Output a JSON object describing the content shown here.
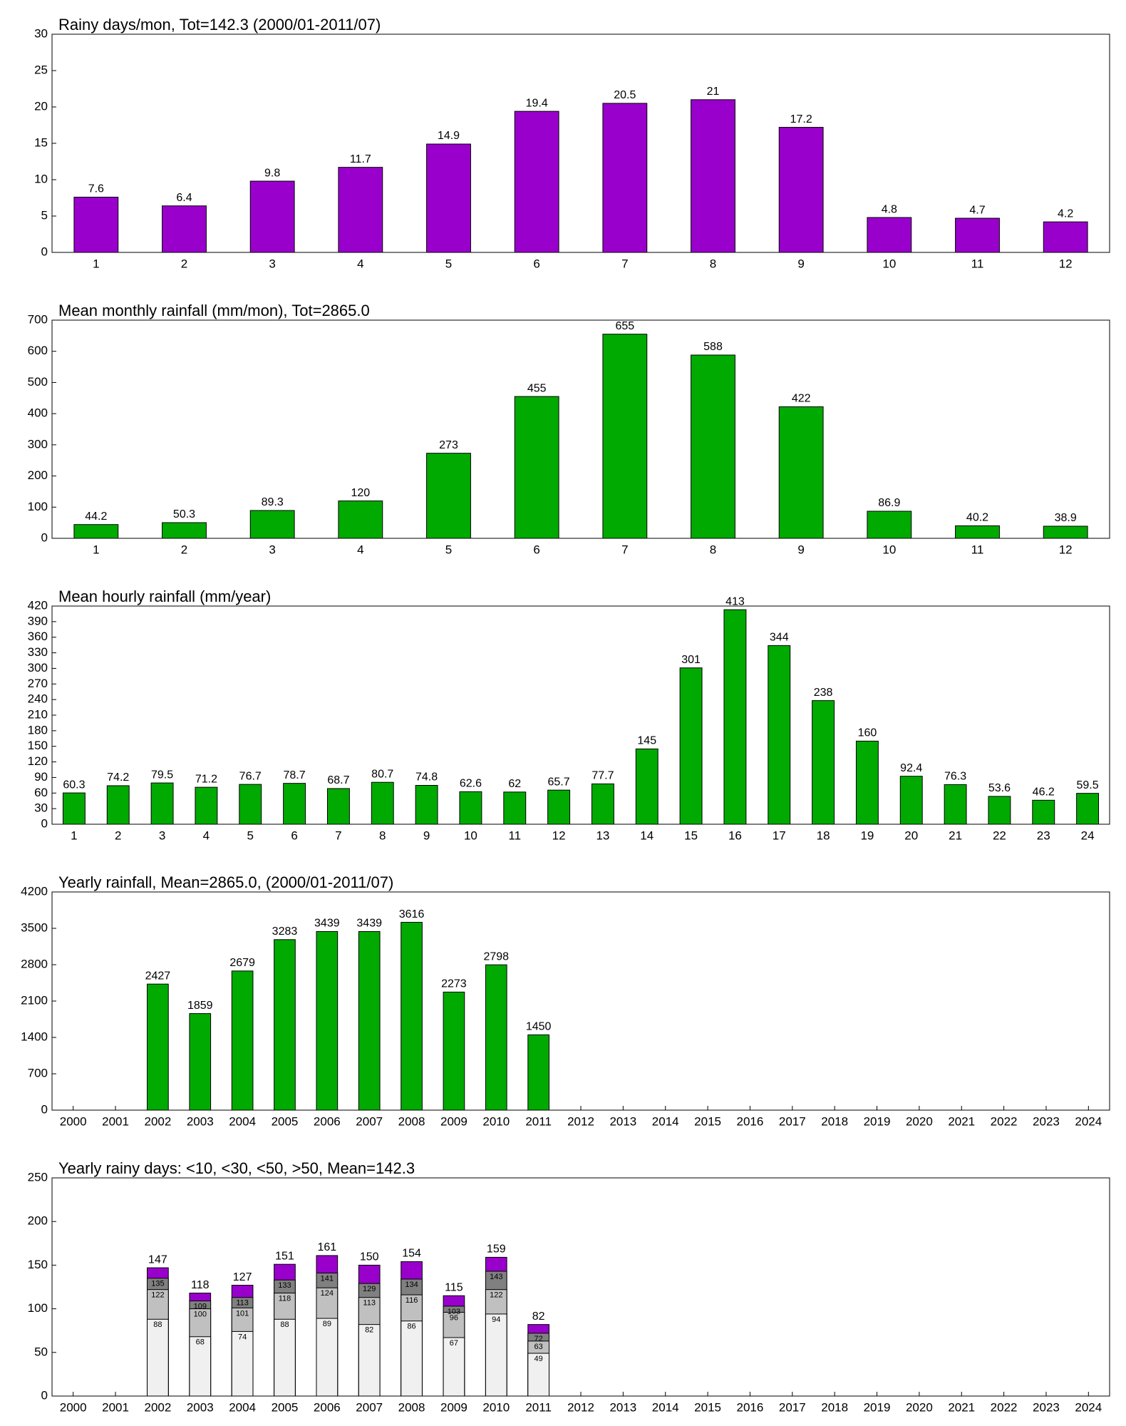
{
  "chart_data": [
    {
      "type": "bar",
      "title": "Rainy days/mon, Tot=142.3 (2000/01-2011/07)",
      "categories": [
        "1",
        "2",
        "3",
        "4",
        "5",
        "6",
        "7",
        "8",
        "9",
        "10",
        "11",
        "12"
      ],
      "values": [
        7.6,
        6.4,
        9.8,
        11.7,
        14.9,
        19.4,
        20.5,
        21,
        17.2,
        4.8,
        4.7,
        4.2
      ],
      "color": "#9900cc",
      "ylim": [
        0,
        30
      ],
      "yticks": [
        0,
        5,
        10,
        15,
        20,
        25,
        30
      ]
    },
    {
      "type": "bar",
      "title": "Mean monthly rainfall (mm/mon), Tot=2865.0",
      "categories": [
        "1",
        "2",
        "3",
        "4",
        "5",
        "6",
        "7",
        "8",
        "9",
        "10",
        "11",
        "12"
      ],
      "values": [
        44.2,
        50.3,
        89.3,
        120,
        273,
        455,
        655,
        588,
        422,
        86.9,
        40.2,
        38.9
      ],
      "color": "#00aa00",
      "ylim": [
        0,
        700
      ],
      "yticks": [
        0,
        100,
        200,
        300,
        400,
        500,
        600,
        700
      ]
    },
    {
      "type": "bar",
      "title": "Mean hourly rainfall (mm/year)",
      "categories": [
        "1",
        "2",
        "3",
        "4",
        "5",
        "6",
        "7",
        "8",
        "9",
        "10",
        "11",
        "12",
        "13",
        "14",
        "15",
        "16",
        "17",
        "18",
        "19",
        "20",
        "21",
        "22",
        "23",
        "24"
      ],
      "values": [
        60.3,
        74.2,
        79.5,
        71.2,
        76.7,
        78.7,
        68.7,
        80.7,
        74.8,
        62.6,
        62,
        65.7,
        77.7,
        145,
        301,
        413,
        344,
        238,
        160,
        92.4,
        76.3,
        53.6,
        46.2,
        59.5
      ],
      "color": "#00aa00",
      "ylim": [
        0,
        420
      ],
      "yticks": [
        0,
        30,
        60,
        90,
        120,
        150,
        180,
        210,
        240,
        270,
        300,
        330,
        360,
        390,
        420
      ]
    },
    {
      "type": "bar",
      "title": "Yearly rainfall, Mean=2865.0, (2000/01-2011/07)",
      "categories": [
        "2000",
        "2001",
        "2002",
        "2003",
        "2004",
        "2005",
        "2006",
        "2007",
        "2008",
        "2009",
        "2010",
        "2011",
        "2012",
        "2013",
        "2014",
        "2015",
        "2016",
        "2017",
        "2018",
        "2019",
        "2020",
        "2021",
        "2022",
        "2023",
        "2024"
      ],
      "values": [
        null,
        null,
        2427,
        1859,
        2679,
        3283,
        3439,
        3439,
        3616,
        2273,
        2798,
        1450,
        null,
        null,
        null,
        null,
        null,
        null,
        null,
        null,
        null,
        null,
        null,
        null,
        null
      ],
      "color": "#00aa00",
      "ylim": [
        0,
        4200
      ],
      "yticks": [
        0,
        700,
        1400,
        2100,
        2800,
        3500,
        4200
      ]
    },
    {
      "type": "bar",
      "barmode": "overlay",
      "title": "Yearly rainy days: <10, <30, <50, >50, Mean=142.3",
      "categories": [
        "2000",
        "2001",
        "2002",
        "2003",
        "2004",
        "2005",
        "2006",
        "2007",
        "2008",
        "2009",
        "2010",
        "2011",
        "2012",
        "2013",
        "2014",
        "2015",
        "2016",
        "2017",
        "2018",
        "2019",
        "2020",
        "2021",
        "2022",
        "2023",
        "2024"
      ],
      "series": [
        {
          "color": "#f0f0f0",
          "values": [
            null,
            null,
            88,
            68,
            74,
            88,
            89,
            82,
            86,
            67,
            94,
            49,
            null,
            null,
            null,
            null,
            null,
            null,
            null,
            null,
            null,
            null,
            null,
            null,
            null
          ]
        },
        {
          "color": "#c0c0c0",
          "values": [
            null,
            null,
            122,
            100,
            101,
            118,
            124,
            113,
            116,
            96,
            122,
            63,
            null,
            null,
            null,
            null,
            null,
            null,
            null,
            null,
            null,
            null,
            null,
            null,
            null
          ]
        },
        {
          "color": "#808080",
          "values": [
            null,
            null,
            135,
            109,
            113,
            133,
            141,
            129,
            134,
            103,
            143,
            72,
            null,
            null,
            null,
            null,
            null,
            null,
            null,
            null,
            null,
            null,
            null,
            null,
            null
          ]
        },
        {
          "color": "#9900cc",
          "values": [
            null,
            null,
            147,
            118,
            127,
            151,
            161,
            150,
            154,
            115,
            159,
            82,
            null,
            null,
            null,
            null,
            null,
            null,
            null,
            null,
            null,
            null,
            null,
            null,
            null
          ]
        }
      ],
      "ylim": [
        0,
        250
      ],
      "yticks": [
        0,
        50,
        100,
        150,
        200,
        250
      ]
    }
  ]
}
